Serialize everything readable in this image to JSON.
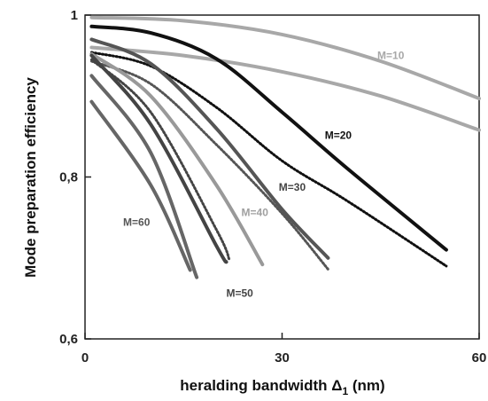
{
  "chart_data": {
    "type": "line",
    "title": "",
    "xlabel": "heralding bandwidth Δ",
    "xlabel_sub": "1",
    "xlabel_unit": " (nm)",
    "ylabel": "Mode preparation efficiency",
    "xlim": [
      0,
      60
    ],
    "ylim": [
      0.6,
      1.0
    ],
    "x_ticks": [
      {
        "value": 0,
        "label": "0"
      },
      {
        "value": 30,
        "label": "30"
      },
      {
        "value": 60,
        "label": "60"
      }
    ],
    "y_ticks": [
      {
        "value": 0.6,
        "label": "0,6"
      },
      {
        "value": 0.8,
        "label": "0,8"
      },
      {
        "value": 1.0,
        "label": "1"
      }
    ],
    "grid": false,
    "legend": "none",
    "series": [
      {
        "label": "M=10",
        "label_x": 44.5,
        "label_y": 0.946,
        "label_color": "#a8a8a8",
        "color": "#a8a8a8",
        "style": "solid",
        "x": [
          1,
          15,
          30,
          45,
          60
        ],
        "y": [
          0.997,
          0.993,
          0.976,
          0.943,
          0.897
        ]
      },
      {
        "label": "",
        "color": "#a8a8a8",
        "style": "solid",
        "x": [
          1,
          15,
          30,
          45,
          60
        ],
        "y": [
          0.96,
          0.95,
          0.93,
          0.9,
          0.858
        ]
      },
      {
        "label": "M=20",
        "label_x": 36.5,
        "label_y": 0.847,
        "label_color": "#111111",
        "color": "#111111",
        "style": "solid",
        "x": [
          1,
          10,
          20,
          30,
          40,
          55
        ],
        "y": [
          0.986,
          0.978,
          0.946,
          0.88,
          0.81,
          0.71
        ]
      },
      {
        "label": "",
        "color": "#111111",
        "style": "dotted",
        "x": [
          1,
          10,
          20,
          30,
          40,
          55
        ],
        "y": [
          0.954,
          0.937,
          0.886,
          0.82,
          0.77,
          0.69
        ]
      },
      {
        "label": "M=30",
        "label_x": 29.5,
        "label_y": 0.783,
        "label_color": "#444444",
        "color": "#555555",
        "style": "solid",
        "x": [
          1,
          10,
          20,
          30,
          37
        ],
        "y": [
          0.97,
          0.94,
          0.86,
          0.76,
          0.7
        ]
      },
      {
        "label": "",
        "color": "#555555",
        "style": "dotted",
        "x": [
          1,
          10,
          20,
          30,
          37
        ],
        "y": [
          0.943,
          0.915,
          0.84,
          0.755,
          0.686
        ]
      },
      {
        "label": "M=40",
        "label_x": 23.8,
        "label_y": 0.752,
        "label_color": "#a0a0a0",
        "color": "#999999",
        "style": "solid",
        "x": [
          1,
          10,
          20,
          27
        ],
        "y": [
          0.952,
          0.9,
          0.79,
          0.692
        ]
      },
      {
        "label": "",
        "color": "#444444",
        "style": "dotted",
        "x": [
          1,
          10,
          20,
          22
        ],
        "y": [
          0.945,
          0.88,
          0.735,
          0.697
        ]
      },
      {
        "label": "M=50",
        "label_x": 21.5,
        "label_y": 0.652,
        "label_color": "#444444",
        "color": "#444444",
        "style": "solid",
        "x": [
          1,
          10,
          20,
          21.5
        ],
        "y": [
          0.95,
          0.865,
          0.715,
          0.695
        ]
      },
      {
        "label": "",
        "color": "#666666",
        "style": "solid",
        "x": [
          1,
          10,
          17
        ],
        "y": [
          0.925,
          0.83,
          0.676
        ]
      },
      {
        "label": "M=60",
        "label_x": 5.8,
        "label_y": 0.74,
        "label_color": "#555555",
        "color": "#666666",
        "style": "solid",
        "x": [
          1,
          10,
          16
        ],
        "y": [
          0.893,
          0.79,
          0.685
        ]
      }
    ]
  }
}
